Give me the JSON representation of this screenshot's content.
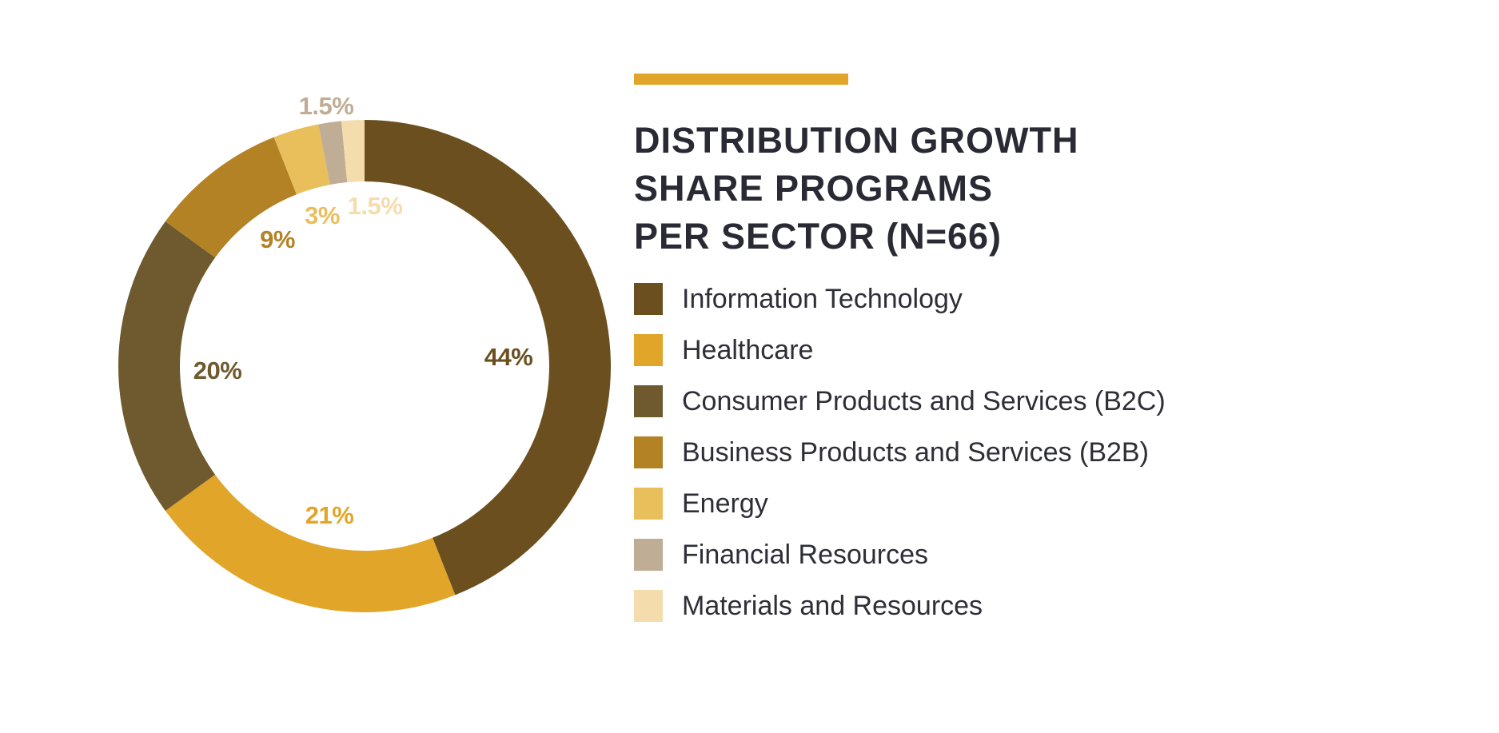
{
  "chart_data": {
    "type": "pie",
    "variant": "donut",
    "title_lines": [
      "DISTRIBUTION GROWTH",
      "SHARE PROGRAMS",
      "PER SECTOR (N=66)"
    ],
    "categories": [
      "Information Technology",
      "Healthcare",
      "Consumer Products and Services (B2C)",
      "Business Products and Services (B2B)",
      "Energy",
      "Financial Resources",
      "Materials and Resources"
    ],
    "values": [
      44,
      21,
      20,
      9,
      3,
      1.5,
      1.5
    ],
    "labels": [
      "44%",
      "21%",
      "20%",
      "9%",
      "3%",
      "1.5%",
      "1.5%"
    ],
    "colors": [
      "#6b4f1f",
      "#e1a629",
      "#6e5a2e",
      "#b28225",
      "#e9bf5b",
      "#bfae95",
      "#f5dcac"
    ],
    "label_colors": [
      "#6b4f1f",
      "#e1a629",
      "#6e5a2e",
      "#b28225",
      "#e9bf5b",
      "#c0ad93",
      "#f5dcac"
    ],
    "legend_position": "right",
    "start_angle": "top, clockwise"
  },
  "accent_color": "#e1a629"
}
